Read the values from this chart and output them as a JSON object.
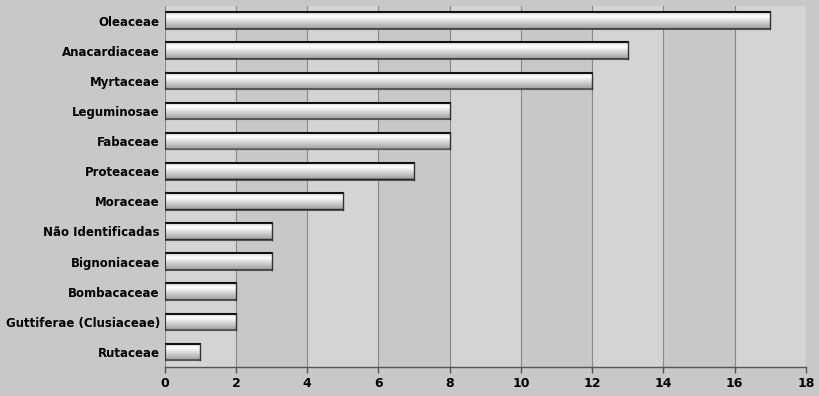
{
  "categories": [
    "Rutaceae",
    "Guttiferae (Clusiaceae)",
    "Bombacaceae",
    "Bignoniaceae",
    "Não Identificadas",
    "Moraceae",
    "Proteaceae",
    "Fabaceae",
    "Leguminosae",
    "Myrtaceae",
    "Anacardiaceae",
    "Oleaceae"
  ],
  "values": [
    1,
    2,
    2,
    3,
    3,
    5,
    7,
    8,
    8,
    12,
    13,
    17
  ],
  "xlim": [
    0,
    18
  ],
  "xticks": [
    0,
    2,
    4,
    6,
    8,
    10,
    12,
    14,
    16,
    18
  ],
  "bar_edge_color": "#000000",
  "background_color": "#c8c8c8",
  "plot_bg_color": "#c8c8c8",
  "grid_color": "#888888",
  "bar_height": 0.55
}
